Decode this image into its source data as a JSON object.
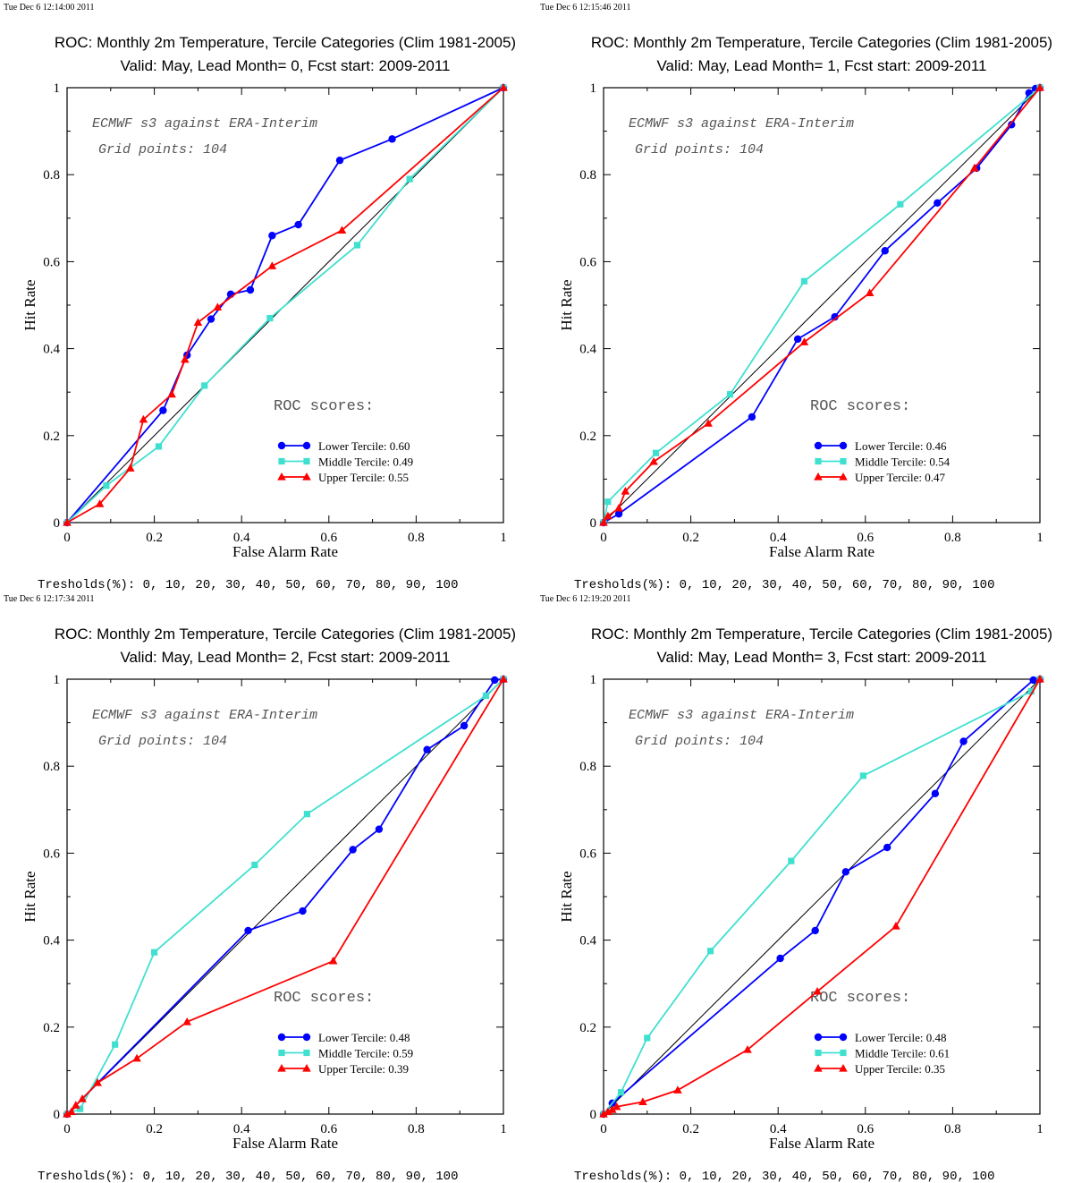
{
  "chart_data": [
    {
      "type": "line",
      "timestamp": "Tue Dec  6 12:14:00 2011",
      "title": "ROC: Monthly 2m Temperature, Tercile Categories (Clim 1981-2005)",
      "subtitle": "Valid: May, Lead Month= 0, Fcst start: 2009-2011",
      "xlabel": "False Alarm Rate",
      "ylabel": "Hit Rate",
      "xlim": [
        0,
        1
      ],
      "ylim": [
        0,
        1
      ],
      "xticks": [
        "0",
        "0.2",
        "0.4",
        "0.6",
        "0.8",
        "1"
      ],
      "yticks": [
        "0",
        "0.2",
        "0.4",
        "0.6",
        "0.8",
        "1"
      ],
      "annotation_1": "ECMWF s3 against ERA-Interim",
      "annotation_2": "Grid points:  104",
      "scores_heading": "ROC scores:",
      "thresholds": "Tresholds(%): 0, 10, 20, 30, 40, 50, 60, 70, 80, 90, 100",
      "series": [
        {
          "name": "Lower Tercile: 0.60",
          "color": "#0000ff",
          "marker": "circle",
          "x": [
            0,
            0.22,
            0.275,
            0.33,
            0.375,
            0.42,
            0.47,
            0.53,
            0.625,
            0.745,
            1
          ],
          "y": [
            0,
            0.258,
            0.385,
            0.468,
            0.525,
            0.535,
            0.66,
            0.685,
            0.833,
            0.882,
            1
          ]
        },
        {
          "name": "Middle Tercile: 0.49",
          "color": "#40e0d0",
          "marker": "square",
          "x": [
            0,
            0.09,
            0.21,
            0.315,
            0.465,
            0.665,
            0.785,
            1
          ],
          "y": [
            0,
            0.085,
            0.175,
            0.315,
            0.47,
            0.638,
            0.79,
            1
          ]
        },
        {
          "name": "Upper Tercile: 0.55",
          "color": "#ff0000",
          "marker": "triangle",
          "x": [
            0,
            0.075,
            0.145,
            0.175,
            0.24,
            0.27,
            0.3,
            0.345,
            0.47,
            0.63,
            1
          ],
          "y": [
            0,
            0.043,
            0.125,
            0.237,
            0.295,
            0.375,
            0.46,
            0.495,
            0.59,
            0.672,
            1
          ]
        }
      ]
    },
    {
      "type": "line",
      "timestamp": "Tue Dec  6 12:15:46 2011",
      "title": "ROC: Monthly 2m Temperature, Tercile Categories (Clim 1981-2005)",
      "subtitle": "Valid: May, Lead Month= 1, Fcst start: 2009-2011",
      "xlabel": "False Alarm Rate",
      "ylabel": "Hit Rate",
      "xlim": [
        0,
        1
      ],
      "ylim": [
        0,
        1
      ],
      "xticks": [
        "0",
        "0.2",
        "0.4",
        "0.6",
        "0.8",
        "1"
      ],
      "yticks": [
        "0",
        "0.2",
        "0.4",
        "0.6",
        "0.8",
        "1"
      ],
      "annotation_1": "ECMWF s3 against ERA-Interim",
      "annotation_2": "Grid points:  104",
      "scores_heading": "ROC scores:",
      "thresholds": "Tresholds(%): 0, 10, 20, 30, 40, 50, 60, 70, 80, 90, 100",
      "series": [
        {
          "name": "Lower Tercile: 0.46",
          "color": "#0000ff",
          "marker": "circle",
          "x": [
            0,
            0.035,
            0.34,
            0.445,
            0.53,
            0.645,
            0.765,
            0.855,
            0.935,
            0.975,
            0.99,
            1
          ],
          "y": [
            0,
            0.02,
            0.243,
            0.422,
            0.473,
            0.625,
            0.735,
            0.815,
            0.915,
            0.988,
            0.998,
            1
          ]
        },
        {
          "name": "Middle Tercile: 0.54",
          "color": "#40e0d0",
          "marker": "square",
          "x": [
            0,
            0.01,
            0.12,
            0.29,
            0.46,
            0.68,
            1
          ],
          "y": [
            0,
            0.048,
            0.16,
            0.295,
            0.555,
            0.732,
            1
          ]
        },
        {
          "name": "Upper Tercile: 0.47",
          "color": "#ff0000",
          "marker": "triangle",
          "x": [
            0,
            0.01,
            0.035,
            0.05,
            0.115,
            0.24,
            0.46,
            0.61,
            0.85,
            1
          ],
          "y": [
            0,
            0.015,
            0.033,
            0.072,
            0.14,
            0.228,
            0.415,
            0.528,
            0.815,
            1
          ]
        }
      ]
    },
    {
      "type": "line",
      "timestamp": "Tue Dec  6 12:17:34 2011",
      "title": "ROC: Monthly 2m Temperature, Tercile Categories (Clim 1981-2005)",
      "subtitle": "Valid: May, Lead Month= 2, Fcst start: 2009-2011",
      "xlabel": "False Alarm Rate",
      "ylabel": "Hit Rate",
      "xlim": [
        0,
        1
      ],
      "ylim": [
        0,
        1
      ],
      "xticks": [
        "0",
        "0.2",
        "0.4",
        "0.6",
        "0.8",
        "1"
      ],
      "yticks": [
        "0",
        "0.2",
        "0.4",
        "0.6",
        "0.8",
        "1"
      ],
      "annotation_1": "ECMWF s3 against ERA-Interim",
      "annotation_2": "Grid points:  104",
      "scores_heading": "ROC scores:",
      "thresholds": "Tresholds(%): 0, 10, 20, 30, 40, 50, 60, 70, 80, 90, 100",
      "series": [
        {
          "name": "Lower Tercile: 0.48",
          "color": "#0000ff",
          "marker": "circle",
          "x": [
            0,
            0.415,
            0.54,
            0.655,
            0.715,
            0.825,
            0.91,
            0.98,
            1
          ],
          "y": [
            0,
            0.422,
            0.467,
            0.608,
            0.655,
            0.838,
            0.893,
            0.998,
            1
          ]
        },
        {
          "name": "Middle Tercile: 0.59",
          "color": "#40e0d0",
          "marker": "square",
          "x": [
            0,
            0.03,
            0.11,
            0.2,
            0.43,
            0.55,
            0.96,
            1
          ],
          "y": [
            0,
            0.012,
            0.16,
            0.372,
            0.573,
            0.69,
            0.962,
            1
          ]
        },
        {
          "name": "Upper Tercile: 0.39",
          "color": "#ff0000",
          "marker": "triangle",
          "x": [
            0,
            0.01,
            0.02,
            0.035,
            0.07,
            0.16,
            0.275,
            0.61,
            1
          ],
          "y": [
            0,
            0.005,
            0.02,
            0.035,
            0.072,
            0.128,
            0.212,
            0.352,
            1
          ]
        }
      ]
    },
    {
      "type": "line",
      "timestamp": "Tue Dec  6 12:19:20 2011",
      "title": "ROC: Monthly 2m Temperature, Tercile Categories (Clim 1981-2005)",
      "subtitle": "Valid: May, Lead Month= 3, Fcst start: 2009-2011",
      "xlabel": "False Alarm Rate",
      "ylabel": "Hit Rate",
      "xlim": [
        0,
        1
      ],
      "ylim": [
        0,
        1
      ],
      "xticks": [
        "0",
        "0.2",
        "0.4",
        "0.6",
        "0.8",
        "1"
      ],
      "yticks": [
        "0",
        "0.2",
        "0.4",
        "0.6",
        "0.8",
        "1"
      ],
      "annotation_1": "ECMWF s3 against ERA-Interim",
      "annotation_2": "Grid points:  104",
      "scores_heading": "ROC scores:",
      "thresholds": "Tresholds(%): 0, 10, 20, 30, 40, 50, 60, 70, 80, 90, 100",
      "series": [
        {
          "name": "Lower Tercile: 0.48",
          "color": "#0000ff",
          "marker": "circle",
          "x": [
            0,
            0.02,
            0.405,
            0.485,
            0.555,
            0.65,
            0.76,
            0.825,
            0.985,
            1
          ],
          "y": [
            0,
            0.025,
            0.358,
            0.422,
            0.557,
            0.613,
            0.737,
            0.857,
            0.998,
            1
          ]
        },
        {
          "name": "Middle Tercile: 0.61",
          "color": "#40e0d0",
          "marker": "square",
          "x": [
            0,
            0.04,
            0.1,
            0.245,
            0.43,
            0.595,
            0.98,
            1
          ],
          "y": [
            0,
            0.05,
            0.175,
            0.375,
            0.582,
            0.778,
            0.972,
            1
          ]
        },
        {
          "name": "Upper Tercile: 0.35",
          "color": "#ff0000",
          "marker": "triangle",
          "x": [
            0,
            0.01,
            0.02,
            0.03,
            0.09,
            0.17,
            0.33,
            0.49,
            0.67,
            1
          ],
          "y": [
            0,
            0.005,
            0.01,
            0.017,
            0.028,
            0.055,
            0.148,
            0.282,
            0.432,
            1
          ]
        }
      ]
    }
  ]
}
